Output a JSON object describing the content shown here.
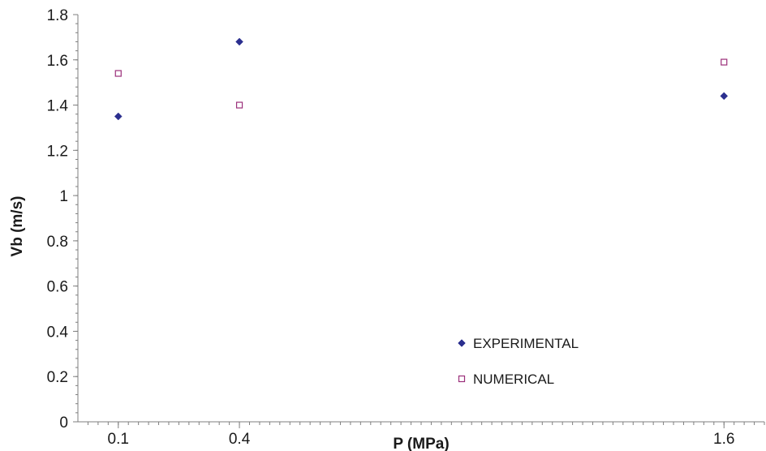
{
  "chart_data": {
    "type": "scatter",
    "title": "",
    "xlabel": "P (MPa)",
    "ylabel": "Vb (m/s)",
    "xlim": [
      0,
      1.7
    ],
    "ylim": [
      0,
      1.8
    ],
    "x_ticks": [
      "0.1",
      "0.4",
      "1.6"
    ],
    "x_tick_values": [
      0.1,
      0.4,
      1.6
    ],
    "y_ticks": [
      "0",
      "0.2",
      "0.4",
      "0.6",
      "0.8",
      "1",
      "1.2",
      "1.4",
      "1.6",
      "1.8"
    ],
    "grid": false,
    "legend_position": "bottom-right",
    "series": [
      {
        "name": "EXPERIMENTAL",
        "marker": "diamond",
        "color": "#2b2f8f",
        "x": [
          0.1,
          0.4,
          1.6
        ],
        "y": [
          1.35,
          1.68,
          1.44
        ]
      },
      {
        "name": "NUMERICAL",
        "marker": "square-open",
        "color": "#9b2f7a",
        "x": [
          0.1,
          0.4,
          1.6
        ],
        "y": [
          1.54,
          1.4,
          1.59
        ]
      }
    ]
  }
}
